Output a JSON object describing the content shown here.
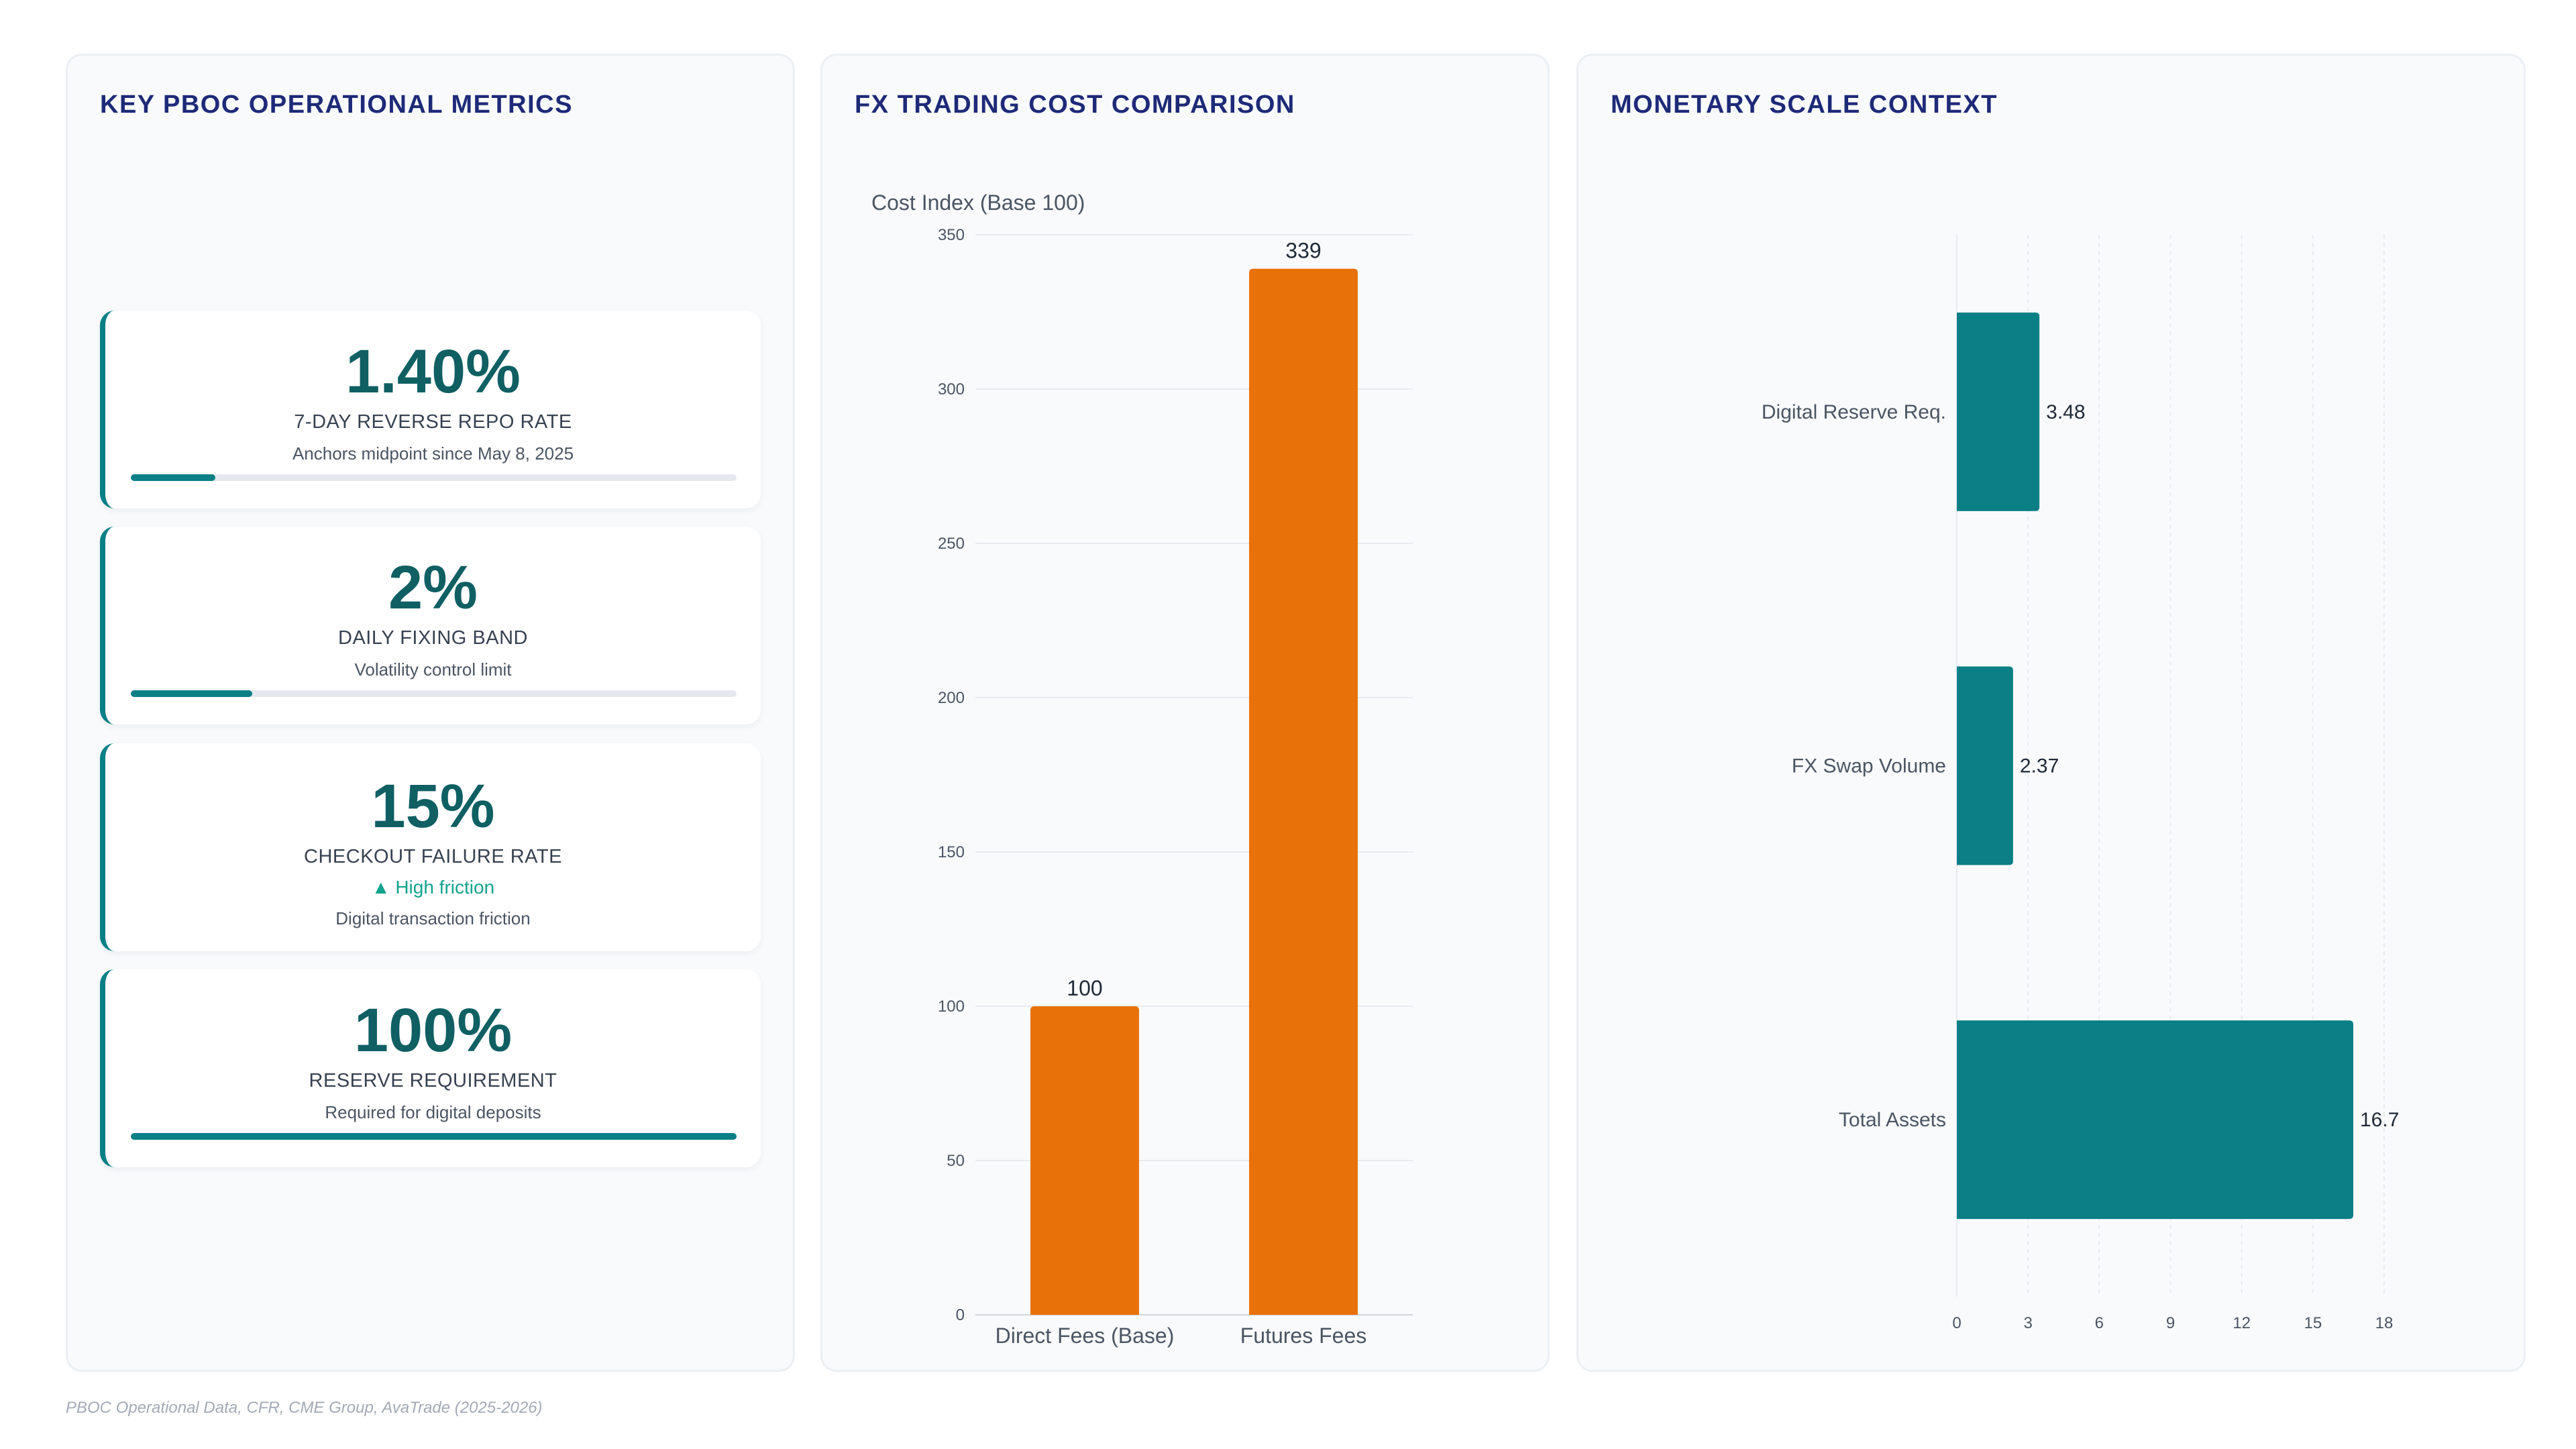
{
  "metrics_panel": {
    "title": "KEY PBOC OPERATIONAL METRICS",
    "cards": [
      {
        "value": "1.40%",
        "label": "7-DAY REVERSE REPO RATE",
        "trend": "",
        "sub": "Anchors midpoint since May 8, 2025",
        "progress": 0.14
      },
      {
        "value": "2%",
        "label": "DAILY FIXING BAND",
        "trend": "",
        "sub": "Volatility control limit",
        "progress": 0.2
      },
      {
        "value": "15%",
        "label": "CHECKOUT FAILURE RATE",
        "trend": "▲ High friction",
        "sub": "Digital transaction friction",
        "progress": null
      },
      {
        "value": "100%",
        "label": "RESERVE REQUIREMENT",
        "trend": "",
        "sub": "Required for digital deposits",
        "progress": 1.0
      }
    ]
  },
  "fx_panel": {
    "title": "FX TRADING COST COMPARISON"
  },
  "scale_panel": {
    "title": "MONETARY SCALE CONTEXT"
  },
  "footer": "PBOC Operational Data, CFR, CME Group, AvaTrade (2025-2026)",
  "colors": {
    "teal": "#0b7f86",
    "orange": "#e8710a",
    "title_navy": "#1e2a78"
  },
  "chart_data": [
    {
      "type": "bar",
      "title": "FX TRADING COST COMPARISON",
      "ylabel": "Cost Index (Base 100)",
      "categories": [
        "Direct Fees (Base)",
        "Futures Fees"
      ],
      "values": [
        100,
        339
      ],
      "ylim": [
        0,
        350
      ],
      "yticks": [
        0,
        50,
        100,
        150,
        200,
        250,
        300,
        350
      ],
      "grid": true,
      "color": "#e8710a"
    },
    {
      "type": "bar",
      "orientation": "horizontal",
      "title": "MONETARY SCALE CONTEXT",
      "categories": [
        "Digital Reserve Req.",
        "FX Swap Volume",
        "Total Assets"
      ],
      "values": [
        3.48,
        2.37,
        16.7
      ],
      "xlim": [
        0,
        18
      ],
      "xticks": [
        0,
        3,
        6,
        9,
        12,
        15,
        18
      ],
      "grid": true,
      "color": "#0b7f86"
    }
  ]
}
